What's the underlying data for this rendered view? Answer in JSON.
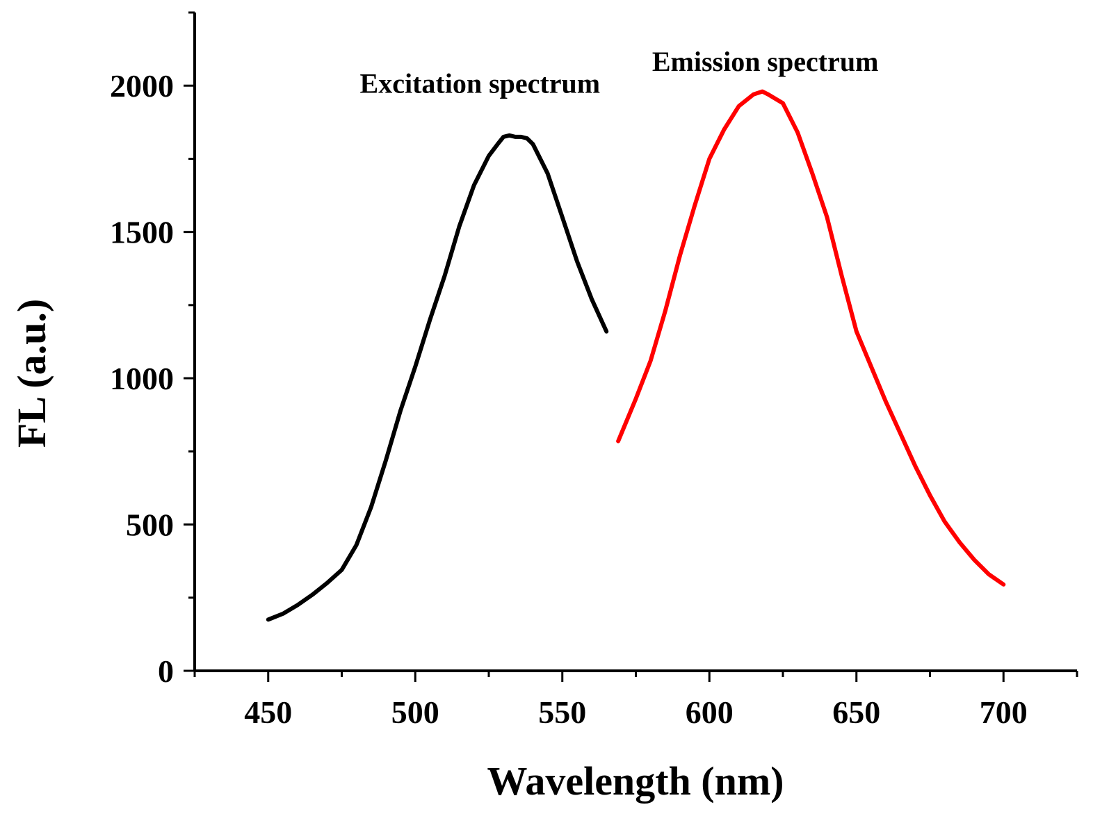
{
  "chart_data": {
    "type": "line",
    "title": "",
    "xlabel": "Wavelength (nm)",
    "ylabel": "FL (a.u.)",
    "xlim": [
      425,
      725
    ],
    "ylim": [
      0,
      2250
    ],
    "xticks": [
      450,
      500,
      550,
      600,
      650,
      700
    ],
    "xtick_labels": [
      "450",
      "500",
      "550",
      "600",
      "650",
      "700"
    ],
    "yticks": [
      0,
      500,
      1000,
      1500,
      2000
    ],
    "ytick_labels": [
      "0",
      "500",
      "1000",
      "1500",
      "2000"
    ],
    "grid": false,
    "legend": "none",
    "annotations": [
      {
        "text": "Excitation spectrum",
        "x": 522,
        "y": 1975
      },
      {
        "text": "Emission spectrum",
        "x": 619,
        "y": 2050
      }
    ],
    "series": [
      {
        "name": "Excitation spectrum",
        "color": "#000000",
        "x": [
          450,
          455,
          460,
          465,
          470,
          475,
          480,
          485,
          490,
          495,
          500,
          505,
          510,
          515,
          520,
          525,
          528,
          530,
          532,
          534,
          536,
          538,
          540,
          545,
          550,
          555,
          560,
          565
        ],
        "y": [
          175,
          195,
          225,
          260,
          300,
          345,
          430,
          560,
          720,
          890,
          1040,
          1200,
          1350,
          1520,
          1660,
          1760,
          1800,
          1825,
          1830,
          1825,
          1825,
          1820,
          1800,
          1700,
          1550,
          1400,
          1270,
          1160
        ]
      },
      {
        "name": "Emission spectrum",
        "color": "#ff0000",
        "x": [
          569,
          575,
          580,
          585,
          590,
          595,
          600,
          605,
          610,
          615,
          618,
          620,
          625,
          630,
          635,
          640,
          645,
          650,
          655,
          660,
          665,
          670,
          675,
          680,
          685,
          690,
          695,
          700
        ],
        "y": [
          785,
          930,
          1060,
          1230,
          1420,
          1590,
          1750,
          1850,
          1930,
          1970,
          1980,
          1970,
          1940,
          1840,
          1700,
          1550,
          1350,
          1160,
          1040,
          920,
          810,
          700,
          600,
          510,
          440,
          380,
          330,
          295
        ]
      }
    ]
  }
}
